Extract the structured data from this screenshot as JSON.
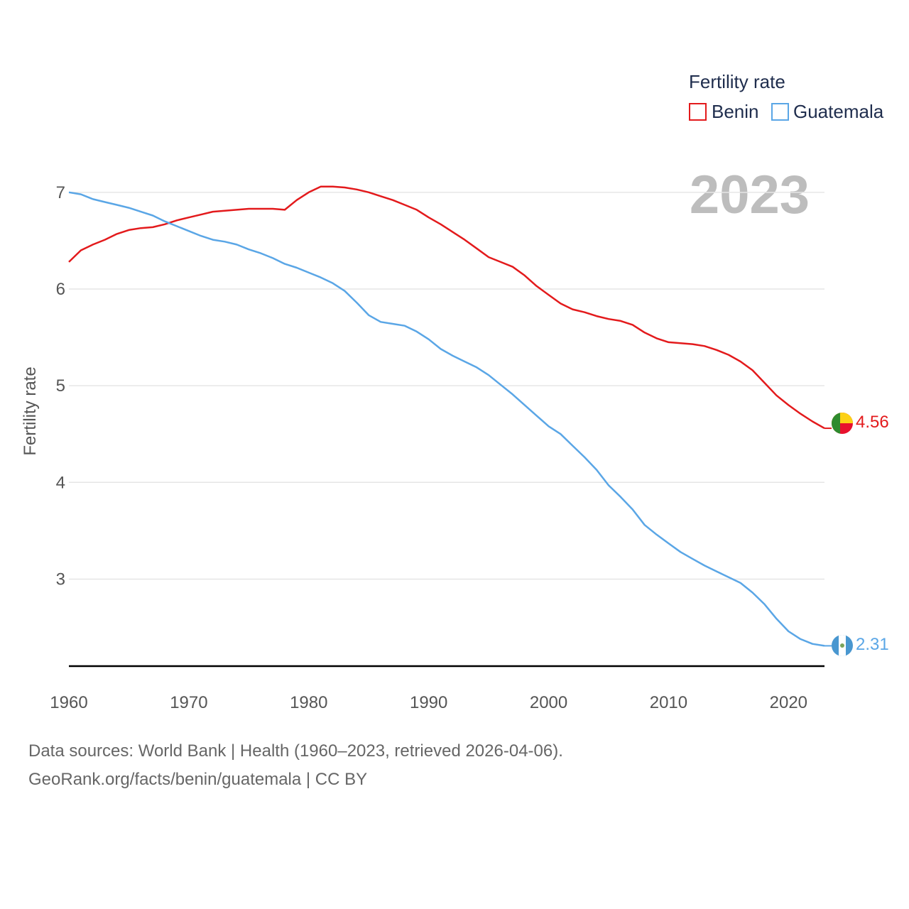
{
  "chart_data": {
    "type": "line",
    "legend_title": "Fertility rate",
    "year_label": "2023",
    "ylabel": "Fertility rate",
    "xlabel": "",
    "xlim": [
      1960,
      2023
    ],
    "ylim": [
      2.1,
      7.3
    ],
    "x_ticks": [
      1960,
      1970,
      1980,
      1990,
      2000,
      2010,
      2020
    ],
    "y_ticks": [
      3,
      4,
      5,
      6,
      7
    ],
    "x": [
      1960,
      1961,
      1962,
      1963,
      1964,
      1965,
      1966,
      1967,
      1968,
      1969,
      1970,
      1971,
      1972,
      1973,
      1974,
      1975,
      1976,
      1977,
      1978,
      1979,
      1980,
      1981,
      1982,
      1983,
      1984,
      1985,
      1986,
      1987,
      1988,
      1989,
      1990,
      1991,
      1992,
      1993,
      1994,
      1995,
      1996,
      1997,
      1998,
      1999,
      2000,
      2001,
      2002,
      2003,
      2004,
      2005,
      2006,
      2007,
      2008,
      2009,
      2010,
      2011,
      2012,
      2013,
      2014,
      2015,
      2016,
      2017,
      2018,
      2019,
      2020,
      2021,
      2022,
      2023
    ],
    "series": [
      {
        "name": "Benin",
        "color": "#e31a1c",
        "end_label": "4.56",
        "flag": "benin-flag",
        "values": [
          6.28,
          6.4,
          6.46,
          6.51,
          6.57,
          6.61,
          6.63,
          6.64,
          6.67,
          6.71,
          6.74,
          6.77,
          6.8,
          6.81,
          6.82,
          6.83,
          6.83,
          6.83,
          6.82,
          6.92,
          7.0,
          7.06,
          7.06,
          7.05,
          7.03,
          7.0,
          6.96,
          6.92,
          6.87,
          6.82,
          6.74,
          6.67,
          6.59,
          6.51,
          6.42,
          6.33,
          6.28,
          6.23,
          6.14,
          6.03,
          5.94,
          5.85,
          5.79,
          5.76,
          5.72,
          5.69,
          5.67,
          5.63,
          5.55,
          5.49,
          5.45,
          5.44,
          5.43,
          5.41,
          5.37,
          5.32,
          5.25,
          5.16,
          5.03,
          4.9,
          4.8,
          4.71,
          4.63,
          4.56
        ]
      },
      {
        "name": "Guatemala",
        "color": "#5aa6e6",
        "end_label": "2.31",
        "flag": "guatemala-flag",
        "values": [
          7.0,
          6.98,
          6.93,
          6.9,
          6.87,
          6.84,
          6.8,
          6.76,
          6.7,
          6.65,
          6.6,
          6.55,
          6.51,
          6.49,
          6.46,
          6.41,
          6.37,
          6.32,
          6.26,
          6.22,
          6.17,
          6.12,
          6.06,
          5.98,
          5.86,
          5.73,
          5.66,
          5.64,
          5.62,
          5.56,
          5.48,
          5.38,
          5.31,
          5.25,
          5.19,
          5.11,
          5.01,
          4.91,
          4.8,
          4.69,
          4.58,
          4.5,
          4.38,
          4.26,
          4.13,
          3.97,
          3.85,
          3.72,
          3.56,
          3.46,
          3.37,
          3.28,
          3.21,
          3.14,
          3.08,
          3.02,
          2.96,
          2.86,
          2.74,
          2.59,
          2.46,
          2.38,
          2.33,
          2.31
        ]
      }
    ]
  },
  "footer": {
    "line1": "Data sources: World Bank | Health (1960–2023, retrieved 2026-04-06).",
    "line2": "GeoRank.org/facts/benin/guatemala | CC BY"
  },
  "colors": {
    "grid": "#e6e6e6",
    "axis": "#000000",
    "benin_flag_green": "#2e8b2e",
    "benin_flag_yellow": "#fcd116",
    "benin_flag_red": "#e8112d",
    "guatemala_flag_blue": "#4997d0",
    "guatemala_flag_white": "#ffffff"
  }
}
